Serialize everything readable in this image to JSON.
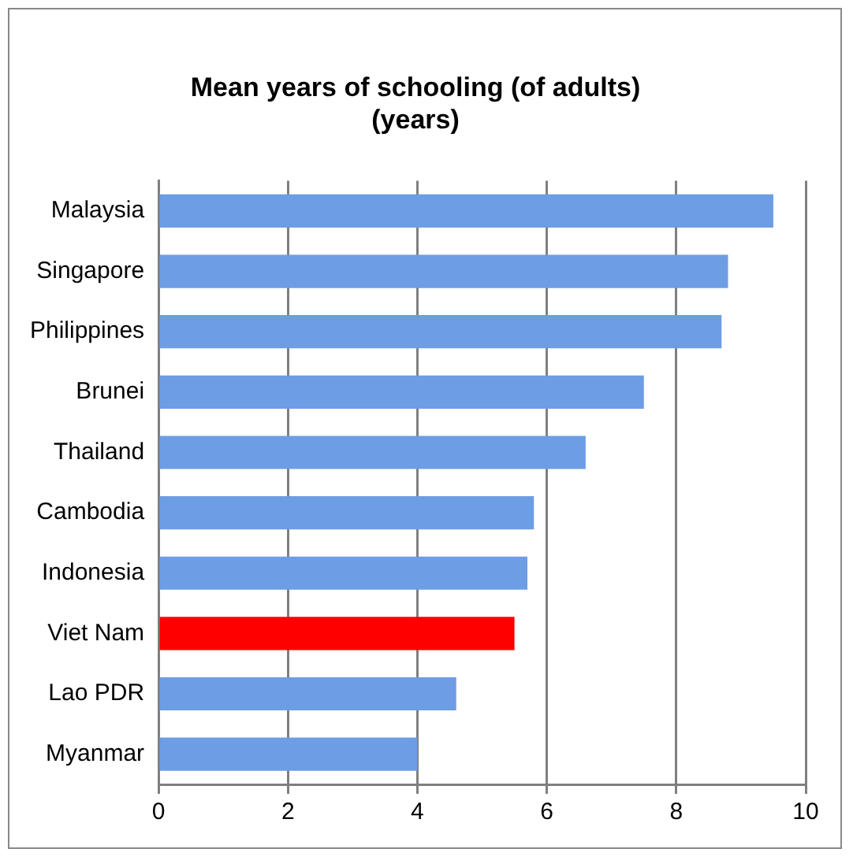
{
  "chart_data": {
    "type": "bar",
    "orientation": "horizontal",
    "title": "Mean years of schooling (of adults)\n(years)",
    "categories": [
      "Malaysia",
      "Singapore",
      "Philippines",
      "Brunei",
      "Thailand",
      "Cambodia",
      "Indonesia",
      "Viet Nam",
      "Lao PDR",
      "Myanmar"
    ],
    "values": [
      9.5,
      8.8,
      8.7,
      7.5,
      6.6,
      5.8,
      5.7,
      5.5,
      4.6,
      4.0
    ],
    "colors": [
      "#6d9de4",
      "#6d9de4",
      "#6d9de4",
      "#6d9de4",
      "#6d9de4",
      "#6d9de4",
      "#6d9de4",
      "#ff0000",
      "#6d9de4",
      "#6d9de4"
    ],
    "xlim": [
      0,
      10
    ],
    "xticks": [
      0,
      2,
      4,
      6,
      8,
      10
    ],
    "grid": "x",
    "legend": false
  }
}
